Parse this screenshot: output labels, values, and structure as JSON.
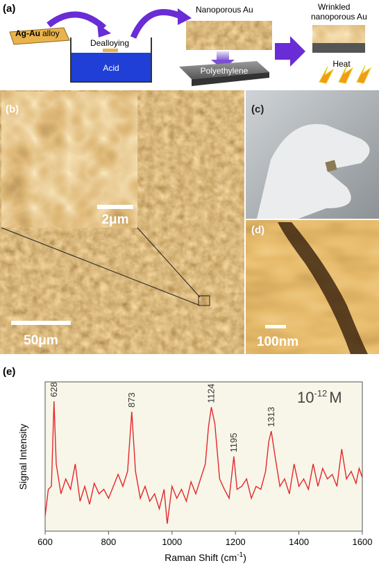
{
  "panel_labels": {
    "a": "(a)",
    "b": "(b)",
    "c": "(c)",
    "d": "(d)",
    "e": "(e)"
  },
  "schematic": {
    "alloy_bold": "Ag-Au",
    "alloy_rest": "alloy",
    "dealloying": "Dealloying",
    "acid": "Acid",
    "nanoporous": "Nanoporous Au",
    "polyethylene": "Polyethylene",
    "wrinkled_1": "Wrinkled",
    "wrinkled_2": "nanoporous Au",
    "heat": "Heat"
  },
  "scale_bars": {
    "b_inset": "2μm",
    "b_main": "50μm",
    "d": "100nm"
  },
  "chart_data": {
    "type": "line",
    "ylabel": "Signal Intensity",
    "xlabel": {
      "text": "Raman Shift (cm",
      "superscript": "-1",
      "suffix": ")"
    },
    "concentration": {
      "base": "10",
      "exponent": "-12",
      "unit": "M"
    },
    "x": [
      600,
      610,
      620,
      628,
      635,
      650,
      665,
      680,
      695,
      710,
      725,
      740,
      755,
      770,
      785,
      800,
      815,
      830,
      845,
      860,
      873,
      885,
      900,
      915,
      930,
      945,
      960,
      975,
      985,
      1000,
      1015,
      1030,
      1045,
      1060,
      1075,
      1090,
      1105,
      1115,
      1124,
      1135,
      1150,
      1165,
      1180,
      1195,
      1205,
      1220,
      1235,
      1250,
      1265,
      1280,
      1295,
      1305,
      1313,
      1325,
      1340,
      1355,
      1370,
      1385,
      1400,
      1415,
      1430,
      1445,
      1460,
      1475,
      1490,
      1505,
      1520,
      1535,
      1550,
      1565,
      1580,
      1590,
      1600
    ],
    "values": [
      10,
      28,
      30,
      87,
      45,
      25,
      35,
      28,
      45,
      20,
      30,
      18,
      32,
      25,
      28,
      22,
      30,
      38,
      30,
      40,
      80,
      40,
      22,
      30,
      20,
      25,
      15,
      28,
      5,
      30,
      22,
      28,
      20,
      33,
      25,
      35,
      45,
      70,
      83,
      72,
      35,
      28,
      22,
      50,
      28,
      30,
      35,
      22,
      30,
      28,
      40,
      60,
      67,
      50,
      30,
      35,
      25,
      45,
      30,
      35,
      28,
      45,
      30,
      42,
      35,
      38,
      30,
      55,
      35,
      40,
      32,
      42,
      36
    ],
    "color": "#e5262b",
    "xlim": [
      600,
      1600
    ],
    "xticks": [
      600,
      800,
      1000,
      1200,
      1400,
      1600
    ],
    "ylim": [
      0,
      100
    ],
    "peaks": [
      628,
      873,
      1124,
      1195,
      1313
    ],
    "background": "#f7f6e9"
  }
}
